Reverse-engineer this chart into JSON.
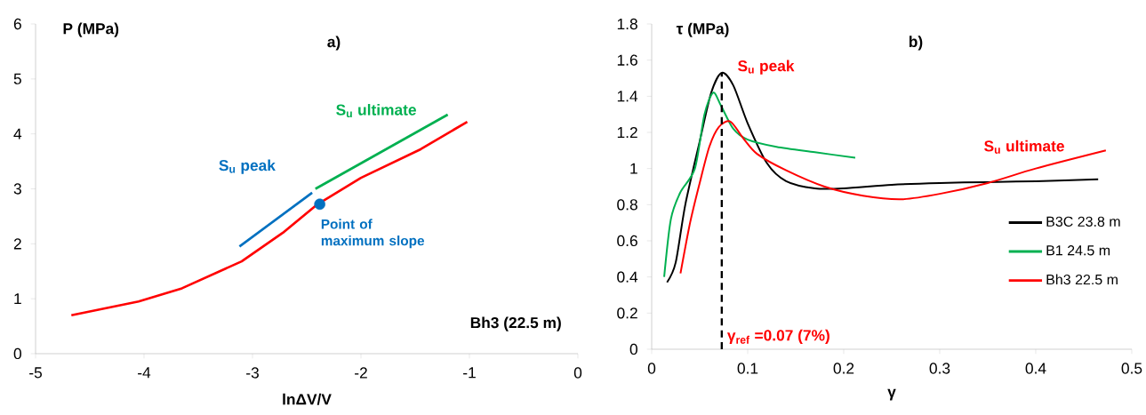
{
  "chart_data": [
    {
      "type": "line",
      "title": "a)",
      "xlabel": "lnΔV/V",
      "ylabel": "P (MPa)",
      "xlim": [
        -5,
        0
      ],
      "ylim": [
        0,
        6
      ],
      "xticks": [
        -5,
        -4,
        -3,
        -2,
        -1,
        0
      ],
      "yticks": [
        0,
        1,
        2,
        3,
        4,
        5,
        6
      ],
      "series": [
        {
          "color": "#ff0000",
          "x": [
            -4.67,
            -4.05,
            -3.65,
            -3.1,
            -2.72,
            -2.4,
            -2.0,
            -1.45,
            -1.02
          ],
          "values": [
            0.7,
            0.95,
            1.19,
            1.68,
            2.2,
            2.72,
            3.2,
            3.72,
            4.22
          ]
        },
        {
          "color": "#0070c0",
          "x": [
            -3.12,
            -2.45
          ],
          "values": [
            1.95,
            2.93
          ]
        },
        {
          "color": "#00b050",
          "x": [
            -2.42,
            -1.2
          ],
          "values": [
            3.0,
            4.35
          ]
        },
        {
          "type": "scatter",
          "marker": "circle",
          "color": "#0070c0",
          "x": [
            -2.38
          ],
          "values": [
            2.72
          ]
        }
      ],
      "annotations": [
        "S$_{u}$ peak",
        "S$_{u}$ ultimate",
        "Point of maximum slope",
        "Bh3 (22.5 m)"
      ]
    },
    {
      "type": "line",
      "title": "b)",
      "xlabel": "γ",
      "ylabel": "τ (MPa)",
      "xlim": [
        0,
        0.5
      ],
      "ylim": [
        0,
        1.8
      ],
      "xticks": [
        0,
        0.1,
        0.2,
        0.3,
        0.4,
        0.5
      ],
      "yticks": [
        0,
        0.2,
        0.4,
        0.6,
        0.8,
        1,
        1.2,
        1.4,
        1.6,
        1.8
      ],
      "legend": "right",
      "series": [
        {
          "name": "B3C 23.8 m",
          "color": "#000000",
          "x": [
            0.016,
            0.025,
            0.035,
            0.05,
            0.062,
            0.073,
            0.085,
            0.1,
            0.12,
            0.14,
            0.17,
            0.2,
            0.25,
            0.3,
            0.35,
            0.4,
            0.465
          ],
          "values": [
            0.37,
            0.48,
            0.8,
            1.15,
            1.42,
            1.53,
            1.46,
            1.25,
            1.03,
            0.93,
            0.89,
            0.89,
            0.91,
            0.92,
            0.925,
            0.93,
            0.94
          ]
        },
        {
          "name": "B1 24.5 m",
          "color": "#00b050",
          "x": [
            0.013,
            0.02,
            0.03,
            0.045,
            0.055,
            0.064,
            0.072,
            0.085,
            0.1,
            0.13,
            0.17,
            0.212
          ],
          "values": [
            0.4,
            0.72,
            0.87,
            1.0,
            1.3,
            1.42,
            1.35,
            1.22,
            1.16,
            1.12,
            1.09,
            1.06
          ]
        },
        {
          "name": "Bh3 22.5 m",
          "color": "#ff0000",
          "x": [
            0.03,
            0.04,
            0.05,
            0.06,
            0.07,
            0.082,
            0.095,
            0.11,
            0.14,
            0.18,
            0.22,
            0.26,
            0.3,
            0.35,
            0.4,
            0.473
          ],
          "values": [
            0.42,
            0.7,
            0.92,
            1.12,
            1.23,
            1.26,
            1.17,
            1.08,
            0.99,
            0.9,
            0.85,
            0.83,
            0.86,
            0.92,
            1.0,
            1.1
          ]
        }
      ],
      "ref_lines": [
        {
          "axis": "x",
          "value": 0.073,
          "label": "γ$_{ref}$ =0.07 (7%)",
          "color": "#000000",
          "line_style": "dashed"
        }
      ],
      "annotations": [
        "S$_{u}$ peak",
        "S$_{u}$ ultimate"
      ]
    }
  ]
}
